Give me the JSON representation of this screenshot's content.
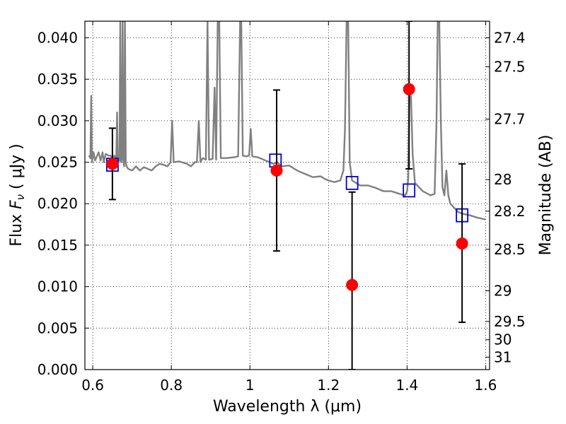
{
  "chart_data": {
    "type": "scatter",
    "xlabel": "Wavelength  λ (μm)",
    "ylabel_left": "Flux  F_ν  ( μJy )",
    "ylabel_right": "Magnitude (AB)",
    "xlim": [
      0.58,
      1.61
    ],
    "ylim": [
      0.0,
      0.042
    ],
    "grid": true,
    "x_ticks": [
      {
        "value": 0.6,
        "label": "0.6"
      },
      {
        "value": 0.8,
        "label": "0.8"
      },
      {
        "value": 1.0,
        "label": "1"
      },
      {
        "value": 1.2,
        "label": "1.2"
      },
      {
        "value": 1.4,
        "label": "1.4"
      },
      {
        "value": 1.6,
        "label": "1.6"
      }
    ],
    "y_ticks": [
      {
        "value": 0.0,
        "label": "0.000"
      },
      {
        "value": 0.005,
        "label": "0.005"
      },
      {
        "value": 0.01,
        "label": "0.010"
      },
      {
        "value": 0.015,
        "label": "0.015"
      },
      {
        "value": 0.02,
        "label": "0.020"
      },
      {
        "value": 0.025,
        "label": "0.025"
      },
      {
        "value": 0.03,
        "label": "0.030"
      },
      {
        "value": 0.035,
        "label": "0.035"
      },
      {
        "value": 0.04,
        "label": "0.040"
      }
    ],
    "right_ticks": [
      {
        "flux": 0.04,
        "label": "27.4"
      },
      {
        "flux": 0.0365,
        "label": "27.5"
      },
      {
        "flux": 0.0302,
        "label": "27.7"
      },
      {
        "flux": 0.0229,
        "label": "28"
      },
      {
        "flux": 0.0191,
        "label": "28.2"
      },
      {
        "flux": 0.0145,
        "label": "28.5"
      },
      {
        "flux": 0.0095,
        "label": "29"
      },
      {
        "flux": 0.0058,
        "label": "29.5"
      },
      {
        "flux": 0.0036,
        "label": "30"
      },
      {
        "flux": 0.0015,
        "label": "31"
      }
    ],
    "series": [
      {
        "kind": "spectrum",
        "color": "#808080",
        "points": [
          [
            0.59,
            0.0258
          ],
          [
            0.594,
            0.0255
          ],
          [
            0.596,
            0.033
          ],
          [
            0.598,
            0.025
          ],
          [
            0.602,
            0.0262
          ],
          [
            0.606,
            0.0252
          ],
          [
            0.615,
            0.0262
          ],
          [
            0.62,
            0.0252
          ],
          [
            0.625,
            0.0262
          ],
          [
            0.628,
            0.025
          ],
          [
            0.633,
            0.026
          ],
          [
            0.64,
            0.0258
          ],
          [
            0.645,
            0.0258
          ],
          [
            0.65,
            0.0255
          ],
          [
            0.655,
            0.0258
          ],
          [
            0.66,
            0.0254
          ],
          [
            0.662,
            0.031
          ],
          [
            0.664,
            0.025
          ],
          [
            0.666,
            0.0255
          ],
          [
            0.668,
            0.0252
          ],
          [
            0.67,
            0.042
          ],
          [
            0.672,
            0.025
          ],
          [
            0.674,
            0.0255
          ],
          [
            0.676,
            0.042
          ],
          [
            0.678,
            0.025
          ],
          [
            0.68,
            0.0245
          ],
          [
            0.682,
            0.042
          ],
          [
            0.684,
            0.025
          ],
          [
            0.686,
            0.0245
          ],
          [
            0.69,
            0.0242
          ],
          [
            0.7,
            0.024
          ],
          [
            0.71,
            0.0245
          ],
          [
            0.72,
            0.024
          ],
          [
            0.73,
            0.0244
          ],
          [
            0.74,
            0.0242
          ],
          [
            0.75,
            0.024
          ],
          [
            0.76,
            0.0245
          ],
          [
            0.77,
            0.0248
          ],
          [
            0.78,
            0.0247
          ],
          [
            0.79,
            0.0245
          ],
          [
            0.798,
            0.025
          ],
          [
            0.802,
            0.03
          ],
          [
            0.806,
            0.025
          ],
          [
            0.82,
            0.0251
          ],
          [
            0.84,
            0.0248
          ],
          [
            0.85,
            0.0245
          ],
          [
            0.86,
            0.025
          ],
          [
            0.865,
            0.025
          ],
          [
            0.87,
            0.03
          ],
          [
            0.874,
            0.025
          ],
          [
            0.88,
            0.0255
          ],
          [
            0.888,
            0.0253
          ],
          [
            0.892,
            0.042
          ],
          [
            0.896,
            0.0253
          ],
          [
            0.905,
            0.0254
          ],
          [
            0.91,
            0.034
          ],
          [
            0.914,
            0.0253
          ],
          [
            0.918,
            0.042
          ],
          [
            0.922,
            0.042
          ],
          [
            0.926,
            0.0255
          ],
          [
            0.94,
            0.0255
          ],
          [
            0.96,
            0.0256
          ],
          [
            0.97,
            0.0257
          ],
          [
            0.975,
            0.042
          ],
          [
            0.978,
            0.042
          ],
          [
            0.982,
            0.0258
          ],
          [
            0.99,
            0.0257
          ],
          [
            0.998,
            0.0258
          ],
          [
            1.002,
            0.029
          ],
          [
            1.006,
            0.0257
          ],
          [
            1.02,
            0.0256
          ],
          [
            1.04,
            0.0252
          ],
          [
            1.05,
            0.025
          ],
          [
            1.06,
            0.0248
          ],
          [
            1.07,
            0.025
          ],
          [
            1.08,
            0.0245
          ],
          [
            1.1,
            0.0246
          ],
          [
            1.12,
            0.024
          ],
          [
            1.14,
            0.0236
          ],
          [
            1.16,
            0.0232
          ],
          [
            1.18,
            0.0233
          ],
          [
            1.19,
            0.023
          ],
          [
            1.2,
            0.0228
          ],
          [
            1.215,
            0.0226
          ],
          [
            1.23,
            0.0228
          ],
          [
            1.238,
            0.024
          ],
          [
            1.242,
            0.029
          ],
          [
            1.246,
            0.042
          ],
          [
            1.25,
            0.042
          ],
          [
            1.254,
            0.025
          ],
          [
            1.26,
            0.0228
          ],
          [
            1.27,
            0.0225
          ],
          [
            1.28,
            0.0222
          ],
          [
            1.3,
            0.0222
          ],
          [
            1.32,
            0.0219
          ],
          [
            1.34,
            0.0215
          ],
          [
            1.36,
            0.0215
          ],
          [
            1.38,
            0.0212
          ],
          [
            1.395,
            0.021
          ],
          [
            1.4,
            0.0215
          ],
          [
            1.403,
            0.023
          ],
          [
            1.406,
            0.033
          ],
          [
            1.41,
            0.033
          ],
          [
            1.414,
            0.026
          ],
          [
            1.42,
            0.0225
          ],
          [
            1.44,
            0.0215
          ],
          [
            1.46,
            0.021
          ],
          [
            1.47,
            0.0212
          ],
          [
            1.475,
            0.03
          ],
          [
            1.478,
            0.042
          ],
          [
            1.482,
            0.042
          ],
          [
            1.486,
            0.03
          ],
          [
            1.49,
            0.022
          ],
          [
            1.495,
            0.021
          ],
          [
            1.5,
            0.024
          ],
          [
            1.505,
            0.021
          ],
          [
            1.51,
            0.02
          ],
          [
            1.52,
            0.0195
          ],
          [
            1.53,
            0.019
          ],
          [
            1.54,
            0.0188
          ],
          [
            1.56,
            0.0186
          ],
          [
            1.58,
            0.0183
          ],
          [
            1.6,
            0.0181
          ]
        ]
      },
      {
        "kind": "model_boxes",
        "color": "#0000dd",
        "points": [
          [
            0.65,
            0.0247
          ],
          [
            1.065,
            0.0252
          ],
          [
            1.26,
            0.0225
          ],
          [
            1.405,
            0.0216
          ],
          [
            1.54,
            0.0186
          ]
        ]
      },
      {
        "kind": "observed_with_errors",
        "color": "#ff0000",
        "points": [
          {
            "x": 0.65,
            "y": 0.0248,
            "ylo": 0.0205,
            "yhi": 0.0291
          },
          {
            "x": 1.068,
            "y": 0.024,
            "ylo": 0.0143,
            "yhi": 0.0337
          },
          {
            "x": 1.26,
            "y": 0.0102,
            "ylo": 0.0,
            "yhi": 0.0214
          },
          {
            "x": 1.405,
            "y": 0.0338,
            "ylo": 0.0242,
            "yhi": 0.042
          },
          {
            "x": 1.54,
            "y": 0.0152,
            "ylo": 0.0057,
            "yhi": 0.0248
          }
        ]
      }
    ]
  }
}
